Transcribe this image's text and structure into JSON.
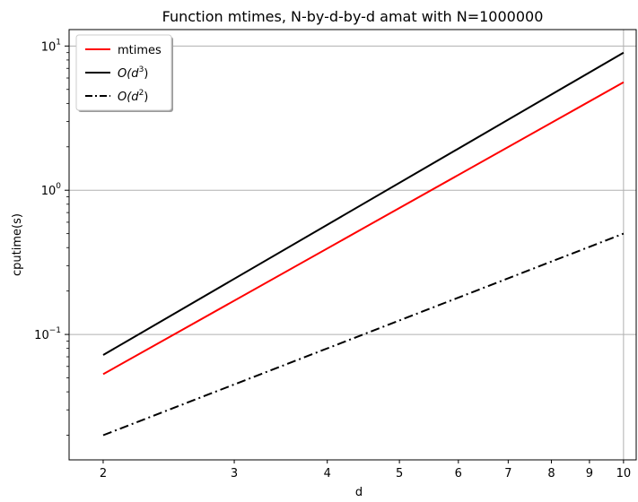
{
  "chart_data": {
    "type": "line",
    "title": "Function mtimes, N-by-d-by-d amat with N=1000000",
    "xlabel": "d",
    "ylabel": "cputime(s)",
    "xscale": "log",
    "yscale": "log",
    "xlim": [
      1.8,
      10.4
    ],
    "ylim": [
      0.0135,
      13
    ],
    "grid": "on",
    "legend_position": "top-left",
    "x_ticks": [
      {
        "value": 2,
        "label": "2"
      },
      {
        "value": 3,
        "label": "3"
      },
      {
        "value": 4,
        "label": "4"
      },
      {
        "value": 5,
        "label": "5"
      },
      {
        "value": 6,
        "label": "6"
      },
      {
        "value": 7,
        "label": "7"
      },
      {
        "value": 8,
        "label": "8"
      },
      {
        "value": 9,
        "label": "9"
      },
      {
        "value": 10,
        "label": "10"
      }
    ],
    "y_ticks": [
      {
        "value": 0.1,
        "base": "10",
        "exp": "−1"
      },
      {
        "value": 1,
        "base": "10",
        "exp": "0"
      },
      {
        "value": 10,
        "base": "10",
        "exp": "1"
      }
    ],
    "series": [
      {
        "name": "mtimes",
        "name_display": {
          "text": "mtimes"
        },
        "color": "#ff0000",
        "dash": "solid",
        "x": [
          2,
          10
        ],
        "y": [
          0.053,
          5.6
        ]
      },
      {
        "name": "O(d^3)",
        "name_display": {
          "pre": "O(d",
          "sup": "3",
          "post": ")"
        },
        "color": "#000000",
        "dash": "solid",
        "x": [
          2,
          10
        ],
        "y": [
          0.072,
          9.0
        ]
      },
      {
        "name": "O(d^2)",
        "name_display": {
          "pre": "O(d",
          "sup": "2",
          "post": ")"
        },
        "color": "#000000",
        "dash": "dashdot",
        "x": [
          2,
          10
        ],
        "y": [
          0.02,
          0.5
        ]
      }
    ]
  }
}
